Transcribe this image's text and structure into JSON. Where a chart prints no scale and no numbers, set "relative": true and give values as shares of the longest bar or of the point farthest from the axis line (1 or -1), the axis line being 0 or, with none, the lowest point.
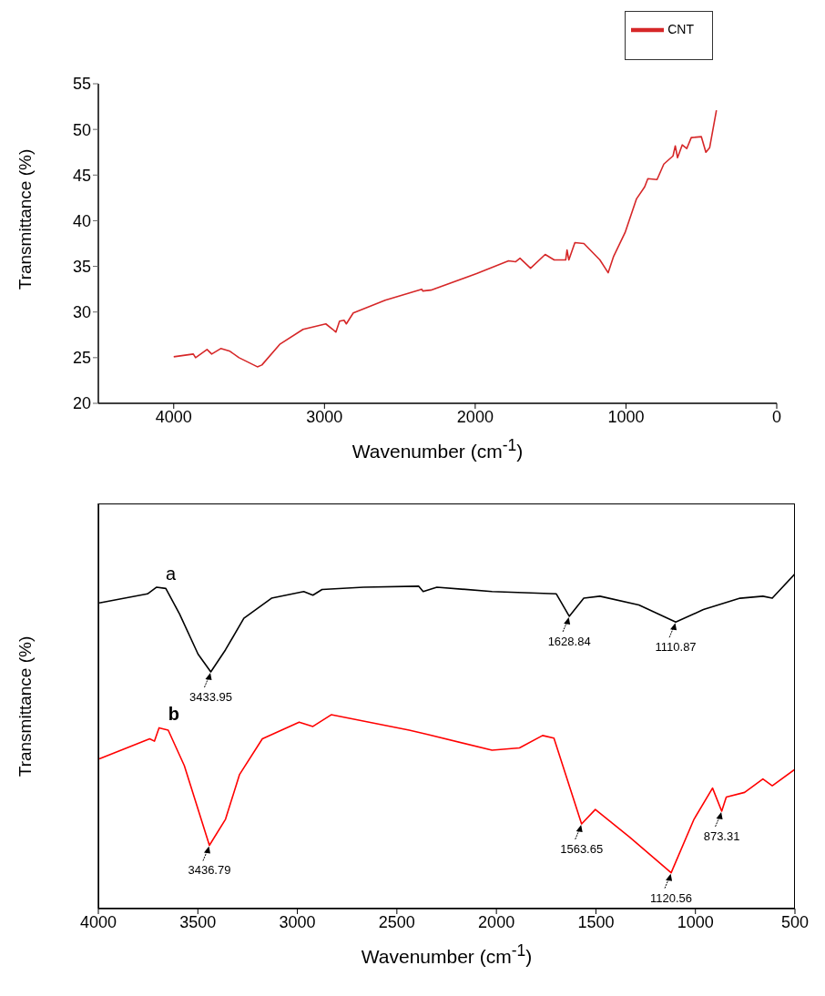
{
  "chart_data": [
    {
      "type": "line",
      "xlabel": "Wavenumber (cm$^{-1}$)",
      "ylabel": "Transmittance (%)",
      "xlim": [
        4500,
        0
      ],
      "xticks": [
        4000,
        3000,
        2000,
        1000,
        0
      ],
      "ylim": [
        20,
        55
      ],
      "yticks": [
        20,
        25,
        30,
        35,
        40,
        45,
        50,
        55
      ],
      "grid": false,
      "legend": "top right",
      "series": [
        {
          "name": "CNT",
          "color": "#d62728",
          "x": [
            4000,
            3870,
            3855,
            3779,
            3748,
            3688,
            3627,
            3567,
            3445,
            3415,
            3294,
            3142,
            2991,
            2945,
            2924,
            2900,
            2870,
            2855,
            2809,
            2597,
            2355,
            2348,
            2294,
            1991,
            1779,
            1733,
            1703,
            1633,
            1536,
            1476,
            1400,
            1391,
            1379,
            1339,
            1279,
            1173,
            1118,
            1082,
            1006,
            930,
            876,
            855,
            794,
            749,
            688,
            673,
            658,
            627,
            597,
            567,
            500,
            470,
            445,
            400
          ],
          "values": [
            25.1,
            25.4,
            25.0,
            25.9,
            25.4,
            26.0,
            25.7,
            25.0,
            24.0,
            24.2,
            26.5,
            28.1,
            28.7,
            28.1,
            27.8,
            29.0,
            29.1,
            28.7,
            29.9,
            31.3,
            32.5,
            32.3,
            32.4,
            34.2,
            35.6,
            35.5,
            35.9,
            34.8,
            36.3,
            35.7,
            35.7,
            36.8,
            35.7,
            37.6,
            37.5,
            35.7,
            34.3,
            36.1,
            38.7,
            42.4,
            43.7,
            44.6,
            44.5,
            46.2,
            47.1,
            48.2,
            46.9,
            48.3,
            47.9,
            49.1,
            49.2,
            47.5,
            48.0,
            52.1
          ]
        }
      ]
    },
    {
      "type": "line",
      "relative": true,
      "xlabel": "Wavenumber (cm$^{-1}$)",
      "ylabel": "Transmittance (%)",
      "xlim": [
        4000,
        500
      ],
      "xticks": [
        4000,
        3500,
        3000,
        2500,
        2000,
        1500,
        1000,
        500
      ],
      "tick_labels": "x",
      "grid": false,
      "legend": false,
      "series": [
        {
          "name": "a",
          "color": "#000000",
          "x": [
            3995,
            3753,
            3707,
            3661,
            3592,
            3499,
            3435,
            3361,
            3269,
            3130,
            2968,
            2922,
            2876,
            2668,
            2391,
            2368,
            2299,
            2022,
            1699,
            1634,
            1561,
            1480,
            1284,
            1099,
            960,
            776,
            661,
            614,
            500
          ],
          "values": [
            0.913,
            0.94,
            0.96,
            0.956,
            0.88,
            0.76,
            0.707,
            0.773,
            0.867,
            0.927,
            0.947,
            0.936,
            0.953,
            0.96,
            0.963,
            0.947,
            0.96,
            0.947,
            0.94,
            0.873,
            0.927,
            0.933,
            0.907,
            0.856,
            0.893,
            0.927,
            0.933,
            0.927,
            1.0
          ]
        },
        {
          "name": "b",
          "color": "#ff0000",
          "x": [
            3995,
            3742,
            3718,
            3695,
            3649,
            3568,
            3442,
            3361,
            3291,
            3176,
            2991,
            2922,
            2830,
            2438,
            2345,
            2022,
            1884,
            1768,
            1711,
            1572,
            1503,
            1330,
            1122,
            1007,
            914,
            868,
            845,
            753,
            661,
            614,
            500
          ],
          "values": [
            0.447,
            0.507,
            0.5,
            0.54,
            0.533,
            0.427,
            0.189,
            0.267,
            0.4,
            0.507,
            0.557,
            0.544,
            0.579,
            0.533,
            0.52,
            0.473,
            0.48,
            0.517,
            0.509,
            0.253,
            0.296,
            0.213,
            0.107,
            0.267,
            0.36,
            0.291,
            0.333,
            0.347,
            0.387,
            0.367,
            0.416
          ]
        }
      ],
      "annotations": [
        {
          "text": "3433.95",
          "x": 3435,
          "y": 0.707
        },
        {
          "text": "1628.84",
          "x": 1634,
          "y": 0.873
        },
        {
          "text": "1110.87",
          "x": 1099,
          "y": 0.856
        },
        {
          "text": "3436.79",
          "x": 3442,
          "y": 0.189
        },
        {
          "text": "1563.65",
          "x": 1572,
          "y": 0.253
        },
        {
          "text": "1120.56",
          "x": 1122,
          "y": 0.107
        },
        {
          "text": "873.31",
          "x": 868,
          "y": 0.291
        }
      ]
    }
  ]
}
